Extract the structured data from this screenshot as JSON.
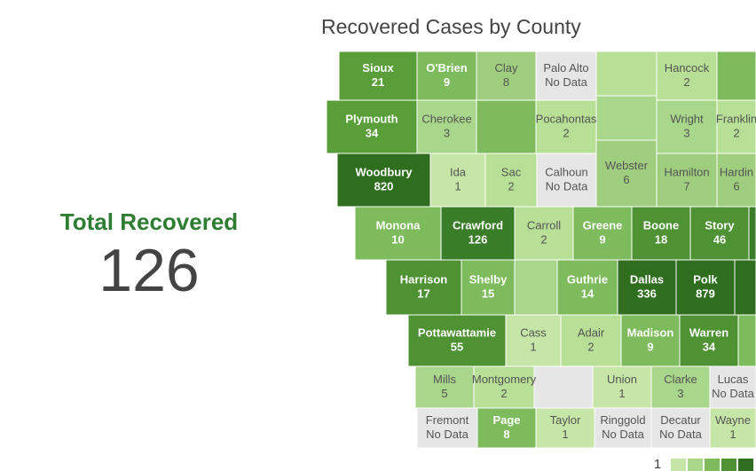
{
  "title": "Recovered Cases by County",
  "total": {
    "label": "Total Recovered",
    "value": 126
  },
  "counties": [
    {
      "name": "Sioux",
      "value": 21,
      "color": "#5a9e3a"
    },
    {
      "name": "O'Brien",
      "value": 9,
      "color": "#7dbb5c"
    },
    {
      "name": "Clay",
      "value": 8,
      "color": "#9fce7e"
    },
    {
      "name": "Palo Alto",
      "value": "No Data",
      "color": "#e6e6e6"
    },
    {
      "name": "Hancock",
      "value": 2,
      "color": "#b7df95"
    },
    {
      "name": "Plymouth",
      "value": 34,
      "color": "#5a9e3a"
    },
    {
      "name": "Cherokee",
      "value": 3,
      "color": "#a8d68a"
    },
    {
      "name": "Pocahontas",
      "value": 2,
      "color": "#b7df95"
    },
    {
      "name": "Wright",
      "value": 3,
      "color": "#a8d68a"
    },
    {
      "name": "Franklin",
      "value": 2,
      "color": "#b7df95"
    },
    {
      "name": "Woodbury",
      "value": 820,
      "color": "#2f6e1f"
    },
    {
      "name": "Ida",
      "value": 1,
      "color": "#c5e6a6"
    },
    {
      "name": "Sac",
      "value": 2,
      "color": "#b7df95"
    },
    {
      "name": "Calhoun",
      "value": "No Data",
      "color": "#e6e6e6"
    },
    {
      "name": "Webster",
      "value": 6,
      "color": "#9fce7e"
    },
    {
      "name": "Hamilton",
      "value": 7,
      "color": "#9fce7e"
    },
    {
      "name": "Hardin",
      "value": 6,
      "color": "#9fce7e"
    },
    {
      "name": "Monona",
      "value": 10,
      "color": "#7dbb5c"
    },
    {
      "name": "Crawford",
      "value": 126,
      "color": "#3a7d28"
    },
    {
      "name": "Carroll",
      "value": 2,
      "color": "#b7df95"
    },
    {
      "name": "Greene",
      "value": 9,
      "color": "#7dbb5c"
    },
    {
      "name": "Boone",
      "value": 18,
      "color": "#4e9234"
    },
    {
      "name": "Story",
      "value": 46,
      "color": "#4e9234"
    },
    {
      "name": "Harrison",
      "value": 17,
      "color": "#4e9234"
    },
    {
      "name": "Shelby",
      "value": 15,
      "color": "#7dbb5c"
    },
    {
      "name": "Guthrie",
      "value": 14,
      "color": "#7dbb5c"
    },
    {
      "name": "Dallas",
      "value": 336,
      "color": "#2f6e1f"
    },
    {
      "name": "Polk",
      "value": 879,
      "color": "#2f6e1f"
    },
    {
      "name": "Pottawattamie",
      "value": 55,
      "color": "#4e9234"
    },
    {
      "name": "Cass",
      "value": 1,
      "color": "#c5e6a6"
    },
    {
      "name": "Adair",
      "value": 2,
      "color": "#b7df95"
    },
    {
      "name": "Madison",
      "value": 9,
      "color": "#7dbb5c"
    },
    {
      "name": "Warren",
      "value": 34,
      "color": "#4e9234"
    },
    {
      "name": "Mills",
      "value": 5,
      "color": "#a8d68a"
    },
    {
      "name": "Montgomery",
      "value": 2,
      "color": "#b7df95"
    },
    {
      "name": "Union",
      "value": 1,
      "color": "#c5e6a6"
    },
    {
      "name": "Clarke",
      "value": 3,
      "color": "#a8d68a"
    },
    {
      "name": "Lucas",
      "value": "No Data",
      "color": "#e6e6e6"
    },
    {
      "name": "Fremont",
      "value": "No Data",
      "color": "#e6e6e6"
    },
    {
      "name": "Page",
      "value": 8,
      "color": "#7dbb5c"
    },
    {
      "name": "Taylor",
      "value": 1,
      "color": "#c5e6a6"
    },
    {
      "name": "Ringgold",
      "value": "No Data",
      "color": "#e6e6e6"
    },
    {
      "name": "Decatur",
      "value": "No Data",
      "color": "#e6e6e6"
    },
    {
      "name": "Wayne",
      "value": 1,
      "color": "#c5e6a6"
    }
  ],
  "legend": {
    "label": 1,
    "colors": [
      "#c5e6a6",
      "#a8d68a",
      "#7dbb5c",
      "#4e9234",
      "#2f6e1f"
    ]
  }
}
